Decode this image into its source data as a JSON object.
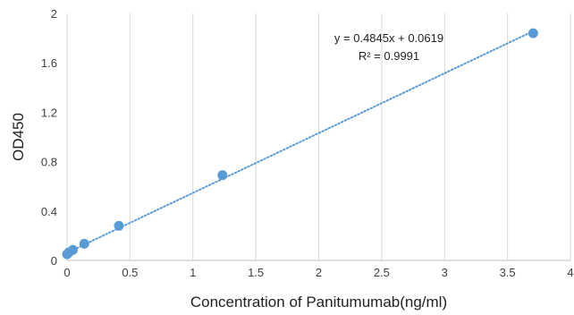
{
  "chart_data": {
    "type": "scatter",
    "title": "",
    "xlabel": "Concentration of Panitumumab(ng/ml)",
    "ylabel": "OD450",
    "xlim": [
      0,
      4
    ],
    "ylim": [
      0,
      2
    ],
    "x_ticks": [
      "0",
      "0.5",
      "1",
      "1.5",
      "2",
      "2.5",
      "3",
      "3.5",
      "4"
    ],
    "y_ticks": [
      "0",
      "0.4",
      "0.8",
      "1.2",
      "1.6",
      "2"
    ],
    "grid": "vertical",
    "legend": "none",
    "series": [
      {
        "x": [
          0,
          0.015,
          0.046,
          0.137,
          0.412,
          1.235,
          3.704
        ],
        "y": [
          0.05,
          0.065,
          0.085,
          0.135,
          0.28,
          0.69,
          1.84
        ],
        "color": "#5b9bd5"
      }
    ],
    "trendline": {
      "type": "linear",
      "slope": 0.4845,
      "intercept": 0.0619,
      "x_range": [
        0,
        3.704
      ],
      "style": "dotted",
      "color": "#5b9bd5",
      "equation": "y = 0.4845x + 0.0619",
      "r_squared": "R² = 0.9991"
    }
  }
}
